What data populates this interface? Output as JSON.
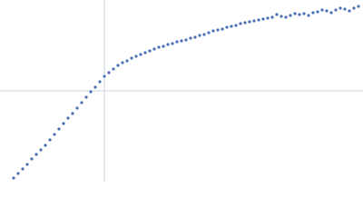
{
  "chart_data": {
    "type": "scatter",
    "x": [
      15,
      20,
      25,
      30,
      35,
      40,
      45,
      50,
      55,
      60,
      65,
      70,
      75,
      80,
      85,
      90,
      95,
      100,
      105,
      110,
      115,
      120,
      125,
      130,
      135,
      140,
      145,
      150,
      155,
      160,
      165,
      170,
      175,
      180,
      185,
      190,
      195,
      200,
      205,
      210,
      215,
      220,
      225,
      230,
      235,
      240,
      245,
      250,
      255,
      260,
      265,
      270,
      275,
      280,
      285,
      290,
      295,
      300,
      305,
      310,
      315,
      320,
      325,
      330,
      335,
      340,
      345,
      350,
      355,
      360,
      365,
      370,
      375,
      380,
      385,
      390,
      395
    ],
    "values": [
      4,
      9,
      14,
      19,
      25,
      30,
      35,
      40,
      46,
      52,
      58,
      64,
      70,
      75,
      81,
      87,
      93,
      99,
      104,
      110,
      116,
      120,
      124,
      128,
      131,
      133,
      136,
      138,
      140,
      142,
      144,
      146,
      148,
      149,
      151,
      152,
      154,
      155,
      156,
      158,
      159,
      161,
      162,
      164,
      166,
      167,
      168,
      170,
      171,
      172,
      174,
      175,
      176,
      177,
      178,
      179,
      180,
      181,
      184,
      182,
      181,
      183,
      185,
      184,
      185,
      183,
      186,
      187,
      189,
      188,
      186,
      189,
      191,
      190,
      188,
      191,
      193
    ],
    "color": "#4a6fb5",
    "xlim": [
      0,
      400
    ],
    "ylim": [
      0,
      200
    ],
    "grid_x": [
      115
    ],
    "grid_y": [
      100
    ],
    "grid_color": "#cdd6e0"
  }
}
